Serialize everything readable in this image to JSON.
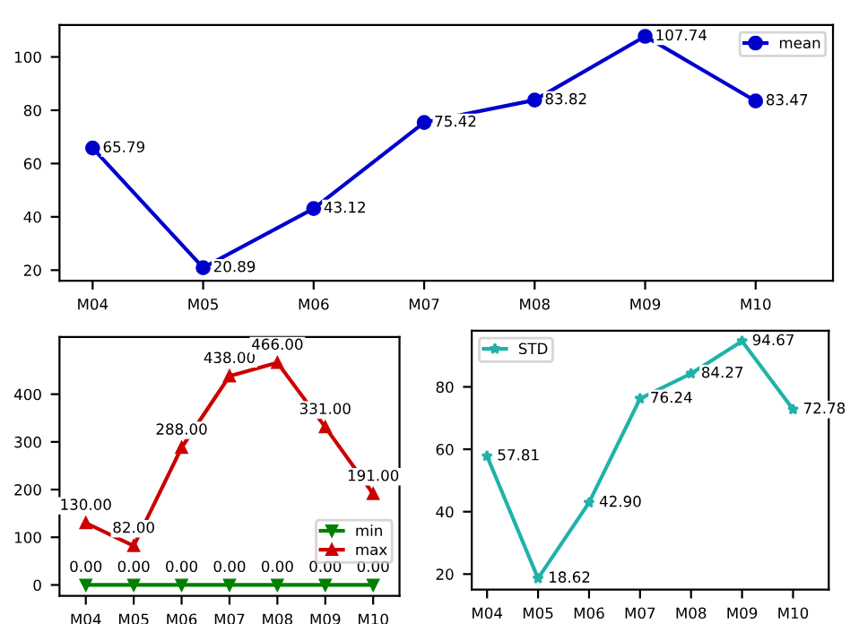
{
  "chart_data": [
    {
      "type": "line",
      "categories": [
        "M04",
        "M05",
        "M06",
        "M07",
        "M08",
        "M09",
        "M10"
      ],
      "ylim": [
        16,
        112
      ],
      "yticks": [
        20,
        40,
        60,
        80,
        100
      ],
      "legend": "top right",
      "grid": false,
      "series": [
        {
          "name": "mean",
          "color": "#0000cd",
          "marker": "circle",
          "values": [
            65.79,
            20.89,
            43.12,
            75.42,
            83.82,
            107.74,
            83.47
          ],
          "value_labels": [
            "65.79",
            "20.89",
            "43.12",
            "75.42",
            "83.82",
            "107.74",
            "83.47"
          ]
        }
      ]
    },
    {
      "type": "line",
      "categories": [
        "M04",
        "M05",
        "M06",
        "M07",
        "M08",
        "M09",
        "M10"
      ],
      "ylim": [
        -23,
        520
      ],
      "yticks": [
        0,
        100,
        200,
        300,
        400
      ],
      "legend": "bottom right",
      "grid": false,
      "series": [
        {
          "name": "min",
          "color": "#008000",
          "marker": "triangle_down",
          "values": [
            0,
            0,
            0,
            0,
            0,
            0,
            0
          ],
          "value_labels": [
            "0.00",
            "0.00",
            "0.00",
            "0.00",
            "0.00",
            "0.00",
            "0.00"
          ]
        },
        {
          "name": "max",
          "color": "#cc0000",
          "marker": "triangle",
          "values": [
            130,
            82,
            288,
            438,
            466,
            331,
            191
          ],
          "value_labels": [
            "130.00",
            "82.00",
            "288.00",
            "438.00",
            "466.00",
            "331.00",
            "191.00"
          ]
        }
      ]
    },
    {
      "type": "line",
      "categories": [
        "M04",
        "M05",
        "M06",
        "M07",
        "M08",
        "M09",
        "M10"
      ],
      "ylim": [
        15,
        98
      ],
      "yticks": [
        20,
        40,
        60,
        80
      ],
      "legend": "top left",
      "grid": false,
      "series": [
        {
          "name": "STD",
          "color": "#20b2aa",
          "marker": "star",
          "values": [
            57.81,
            18.62,
            42.9,
            76.24,
            84.27,
            94.67,
            72.78
          ],
          "value_labels": [
            "57.81",
            "18.62",
            "42.90",
            "76.24",
            "84.27",
            "94.67",
            "72.78"
          ]
        }
      ]
    }
  ]
}
